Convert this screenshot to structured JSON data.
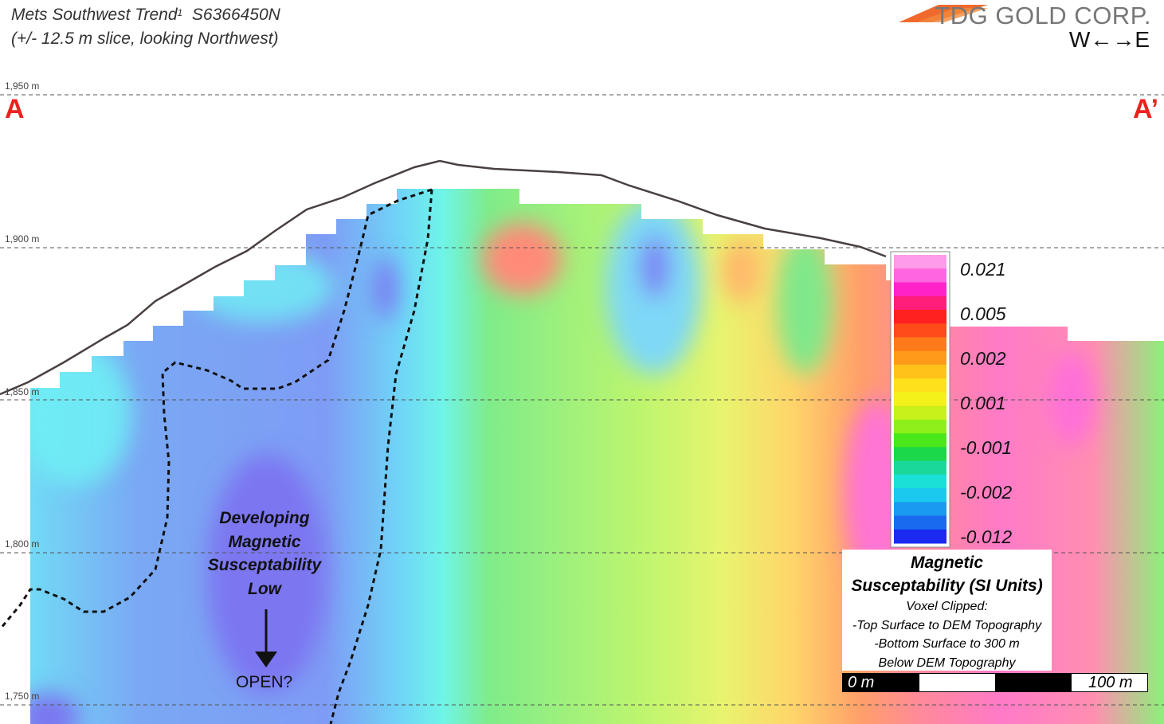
{
  "header": {
    "title_main": "Mets Southwest Trend",
    "title_sup": "1",
    "title_section": "S6366450N",
    "subtitle": "(+/- 12.5 m slice, looking Northwest)",
    "company": "TDG GOLD CORP.",
    "direction_west": "W",
    "direction_east": "E",
    "direction_arrow": "←→"
  },
  "section": {
    "start_label": "A",
    "end_label": "A’",
    "elevations": [
      "1,950 m",
      "1,900 m",
      "1,850 m",
      "1,800 m",
      "1,750 m"
    ]
  },
  "annotation": {
    "line1": "Developing",
    "line2": "Magnetic",
    "line3": "Susceptability",
    "line4": "Low",
    "open": "OPEN?"
  },
  "colorbar": {
    "labels": [
      "0.021",
      "0.005",
      "0.002",
      "0.001",
      "-0.001",
      "-0.002",
      "-0.012"
    ],
    "title_line1": "Magnetic",
    "title_line2": "Susceptability (SI Units)",
    "note1": "Voxel Clipped:",
    "note2": "-Top Surface to DEM Topography",
    "note3": "-Bottom Surface to 300 m",
    "note4": "Below DEM Topography"
  },
  "scalebar": {
    "left": "0 m",
    "right": "100 m"
  },
  "colors": {
    "accent_red": "#e8231f",
    "low_blue": "#7b84f2",
    "high_magenta": "#ff6fd0"
  }
}
